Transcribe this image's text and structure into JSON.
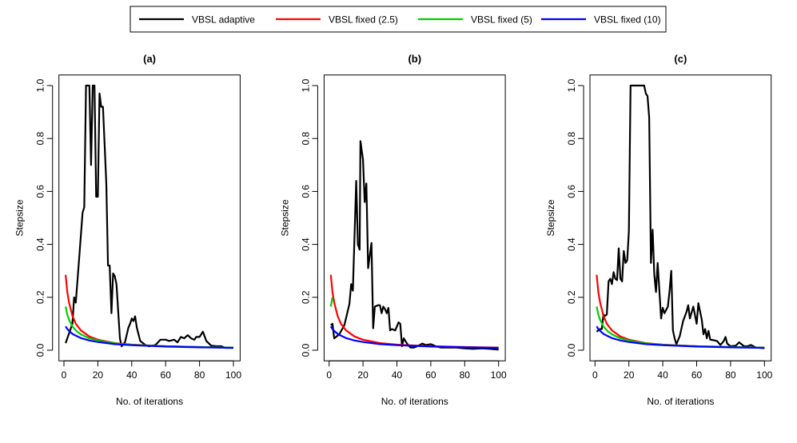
{
  "legend": {
    "placement": "top",
    "items": [
      {
        "label": "VBSL adaptive",
        "color": "#000000"
      },
      {
        "label": "VBSL fixed (2.5)",
        "color": "#ff0000"
      },
      {
        "label": "VBSL fixed (5)",
        "color": "#00cd00"
      },
      {
        "label": "VBSL fixed (10)",
        "color": "#0000ff"
      }
    ]
  },
  "chart_data": [
    {
      "type": "line",
      "title": "(a)",
      "xlabel": "No. of iterations",
      "ylabel": "Stepsize",
      "xlim": [
        1,
        100
      ],
      "ylim": [
        0,
        1
      ],
      "xticks": [
        "0",
        "20",
        "40",
        "60",
        "80",
        "100"
      ],
      "yticks": [
        "0.0",
        "0.2",
        "0.4",
        "0.6",
        "0.8",
        "1.0"
      ],
      "series": [
        {
          "name": "VBSL adaptive",
          "x": [
            1,
            5,
            6,
            7,
            9,
            11,
            12,
            13,
            15,
            16,
            17,
            18,
            19,
            20,
            21,
            22,
            23,
            25,
            26,
            27,
            28,
            29,
            30,
            31,
            33,
            34,
            36,
            38,
            39,
            40,
            41,
            42,
            43,
            45,
            48,
            50,
            54,
            57,
            60,
            62,
            65,
            67,
            69,
            71,
            73,
            75,
            77,
            78,
            80,
            82,
            84,
            87,
            90,
            93,
            95,
            100
          ],
          "y": [
            0.027,
            0.1,
            0.2,
            0.18,
            0.35,
            0.52,
            0.54,
            1,
            1,
            0.7,
            1,
            1,
            0.58,
            0.58,
            0.97,
            0.92,
            0.92,
            0.63,
            0.32,
            0.32,
            0.14,
            0.29,
            0.28,
            0.25,
            0.045,
            0.015,
            0.03,
            0.085,
            0.1,
            0.12,
            0.11,
            0.128,
            0.085,
            0.035,
            0.02,
            0.015,
            0.02,
            0.04,
            0.04,
            0.035,
            0.04,
            0.03,
            0.05,
            0.045,
            0.057,
            0.045,
            0.04,
            0.05,
            0.05,
            0.07,
            0.035,
            0.017,
            0.015,
            0.015,
            0.009,
            0.009
          ]
        },
        {
          "name": "VBSL fixed (2.5)",
          "x": [
            1,
            2,
            3,
            5,
            7,
            10,
            15,
            20,
            30,
            40,
            60,
            80,
            100
          ],
          "y": [
            0.285,
            0.22,
            0.18,
            0.13,
            0.1,
            0.075,
            0.052,
            0.04,
            0.027,
            0.021,
            0.015,
            0.012,
            0.01
          ]
        },
        {
          "name": "VBSL fixed (5)",
          "x": [
            1,
            2,
            3,
            5,
            7,
            10,
            15,
            20,
            30,
            40,
            60,
            80,
            100
          ],
          "y": [
            0.165,
            0.135,
            0.115,
            0.09,
            0.075,
            0.06,
            0.045,
            0.037,
            0.026,
            0.02,
            0.015,
            0.012,
            0.01
          ]
        },
        {
          "name": "VBSL fixed (10)",
          "x": [
            1,
            2,
            3,
            5,
            7,
            10,
            15,
            20,
            30,
            40,
            60,
            80,
            100
          ],
          "y": [
            0.09,
            0.08,
            0.073,
            0.062,
            0.055,
            0.046,
            0.037,
            0.031,
            0.023,
            0.019,
            0.014,
            0.011,
            0.009
          ]
        }
      ]
    },
    {
      "type": "line",
      "title": "(b)",
      "xlabel": "No. of iterations",
      "ylabel": "Stepsize",
      "xlim": [
        1,
        100
      ],
      "ylim": [
        0,
        1
      ],
      "xticks": [
        "0",
        "20",
        "40",
        "60",
        "80",
        "100"
      ],
      "yticks": [
        "0.0",
        "0.2",
        "0.4",
        "0.6",
        "0.8",
        "1.0"
      ],
      "series": [
        {
          "name": "VBSL adaptive",
          "x": [
            1,
            2,
            3,
            6,
            9,
            12,
            13,
            14,
            16,
            17,
            18,
            18.5,
            20,
            21,
            22,
            23,
            25,
            26,
            27,
            29,
            30,
            31,
            32,
            33,
            34,
            35,
            36,
            37,
            39,
            41,
            42,
            43,
            44,
            46,
            48,
            50,
            52,
            55,
            57,
            60,
            63,
            66,
            70,
            75,
            80,
            85,
            90,
            95,
            100
          ],
          "y": [
            0.095,
            0.1,
            0.045,
            0.06,
            0.095,
            0.175,
            0.25,
            0.225,
            0.64,
            0.4,
            0.38,
            0.79,
            0.72,
            0.56,
            0.63,
            0.31,
            0.405,
            0.083,
            0.165,
            0.17,
            0.17,
            0.14,
            0.165,
            0.155,
            0.14,
            0.16,
            0.075,
            0.08,
            0.075,
            0.105,
            0.1,
            0.015,
            0.045,
            0.025,
            0.01,
            0.01,
            0.015,
            0.025,
            0.02,
            0.023,
            0.015,
            0.01,
            0.01,
            0.01,
            0.007,
            0.005,
            0.007,
            0.005,
            0.002
          ]
        },
        {
          "name": "VBSL fixed (2.5)",
          "x": [
            1,
            2,
            3,
            5,
            7,
            10,
            15,
            20,
            30,
            40,
            60,
            80,
            100
          ],
          "y": [
            0.285,
            0.22,
            0.18,
            0.13,
            0.1,
            0.075,
            0.052,
            0.04,
            0.027,
            0.021,
            0.015,
            0.012,
            0.01
          ]
        },
        {
          "name": "VBSL fixed (5)",
          "x": [
            1,
            2
          ],
          "y": [
            0.165,
            0.2
          ]
        },
        {
          "name": "VBSL fixed (10)",
          "x": [
            1,
            2,
            3,
            5,
            7,
            10,
            15,
            20,
            30,
            40,
            60,
            80,
            100
          ],
          "y": [
            0.09,
            0.08,
            0.073,
            0.062,
            0.055,
            0.046,
            0.037,
            0.031,
            0.023,
            0.019,
            0.014,
            0.011,
            0.009
          ]
        }
      ]
    },
    {
      "type": "line",
      "title": "(c)",
      "xlabel": "No. of iterations",
      "ylabel": "Stepsize",
      "xlim": [
        1,
        100
      ],
      "ylim": [
        0,
        1
      ],
      "xticks": [
        "0",
        "20",
        "40",
        "60",
        "80",
        "100"
      ],
      "yticks": [
        "0.0",
        "0.2",
        "0.4",
        "0.6",
        "0.8",
        "1.0"
      ],
      "series": [
        {
          "name": "VBSL adaptive",
          "x": [
            1,
            3,
            4,
            5,
            6,
            7,
            8,
            9,
            10,
            11,
            12,
            13,
            14,
            15,
            16,
            17,
            18,
            19,
            20,
            21,
            25,
            29,
            30,
            31,
            32,
            33,
            34,
            35,
            36,
            37,
            39,
            40,
            41,
            43,
            44,
            45,
            46,
            47,
            48,
            50,
            52,
            54,
            55,
            56,
            58,
            60,
            61,
            63,
            64,
            65,
            66,
            67,
            68,
            70,
            72,
            74,
            76,
            77,
            78,
            80,
            83,
            85,
            88,
            90,
            92,
            95,
            100
          ],
          "y": [
            0.07,
            0.08,
            0.08,
            0.135,
            0.13,
            0.135,
            0.26,
            0.27,
            0.25,
            0.295,
            0.27,
            0.265,
            0.385,
            0.27,
            0.26,
            0.375,
            0.33,
            0.34,
            0.45,
            1,
            1,
            1,
            0.97,
            0.96,
            0.88,
            0.33,
            0.455,
            0.285,
            0.22,
            0.33,
            0.12,
            0.16,
            0.14,
            0.165,
            0.225,
            0.3,
            0.075,
            0.045,
            0.023,
            0.053,
            0.11,
            0.145,
            0.17,
            0.12,
            0.165,
            0.1,
            0.178,
            0.115,
            0.06,
            0.08,
            0.045,
            0.073,
            0.04,
            0.038,
            0.035,
            0.02,
            0.035,
            0.05,
            0.025,
            0.015,
            0.017,
            0.03,
            0.015,
            0.015,
            0.02,
            0.01,
            0.008
          ]
        },
        {
          "name": "VBSL fixed (2.5)",
          "x": [
            1,
            2,
            3,
            5,
            7,
            10,
            15,
            20,
            30,
            40,
            60,
            80,
            100
          ],
          "y": [
            0.285,
            0.22,
            0.18,
            0.13,
            0.1,
            0.075,
            0.052,
            0.04,
            0.027,
            0.021,
            0.015,
            0.012,
            0.01
          ]
        },
        {
          "name": "VBSL fixed (5)",
          "x": [
            1,
            2,
            3,
            5,
            7,
            10,
            15,
            20,
            30,
            40,
            60,
            80,
            100
          ],
          "y": [
            0.165,
            0.135,
            0.115,
            0.09,
            0.075,
            0.06,
            0.045,
            0.037,
            0.026,
            0.02,
            0.015,
            0.012,
            0.01
          ]
        },
        {
          "name": "VBSL fixed (10)",
          "x": [
            1,
            2,
            3,
            5,
            7,
            10,
            15,
            20,
            30,
            40,
            60,
            80,
            100
          ],
          "y": [
            0.09,
            0.08,
            0.073,
            0.062,
            0.055,
            0.046,
            0.037,
            0.031,
            0.023,
            0.019,
            0.014,
            0.011,
            0.009
          ]
        }
      ]
    }
  ]
}
